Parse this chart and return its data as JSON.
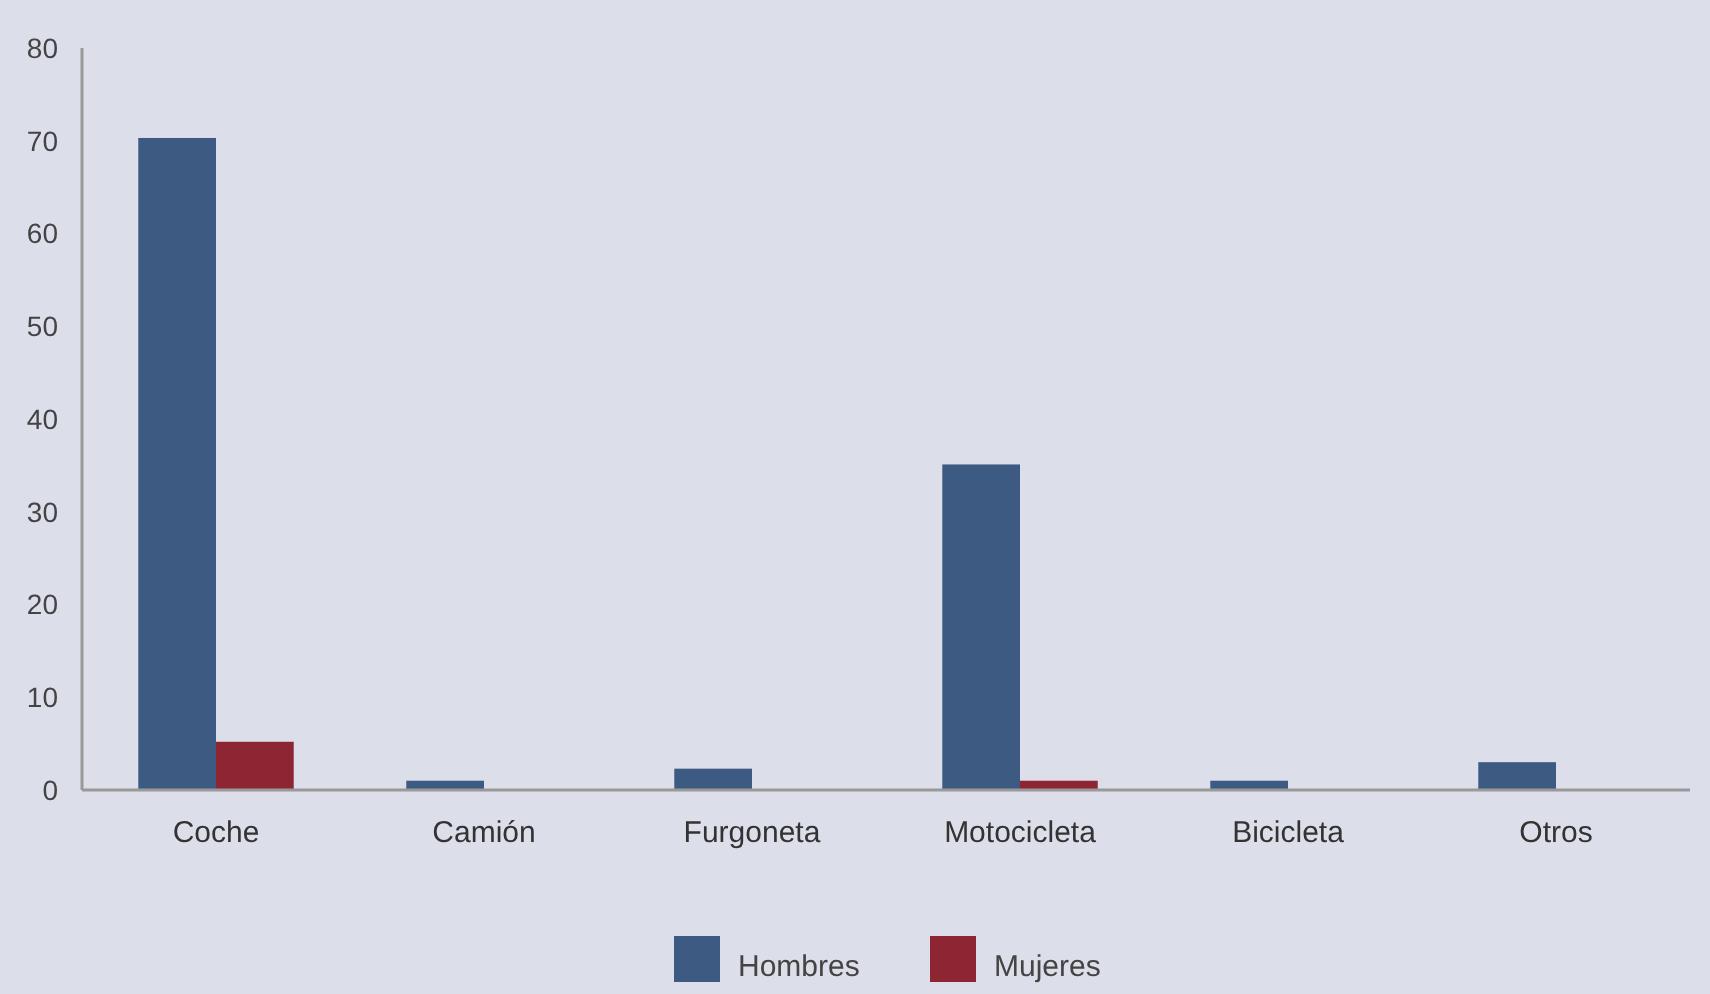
{
  "chart_data": {
    "type": "bar",
    "categories": [
      "Coche",
      "Camión",
      "Furgoneta",
      "Motocicleta",
      "Bicicleta",
      "Otros"
    ],
    "series": [
      {
        "name": "Hombres",
        "color": "#3d5a82",
        "values": [
          70.3,
          1,
          2.3,
          35.1,
          1,
          3
        ]
      },
      {
        "name": "Mujeres",
        "color": "#8e2533",
        "values": [
          5.2,
          0,
          0,
          1,
          0,
          0
        ]
      }
    ],
    "ylim": [
      0,
      80
    ],
    "yticks": [
      0,
      10,
      20,
      30,
      40,
      50,
      60,
      70,
      80
    ],
    "grid": false,
    "legend": "bottom"
  }
}
